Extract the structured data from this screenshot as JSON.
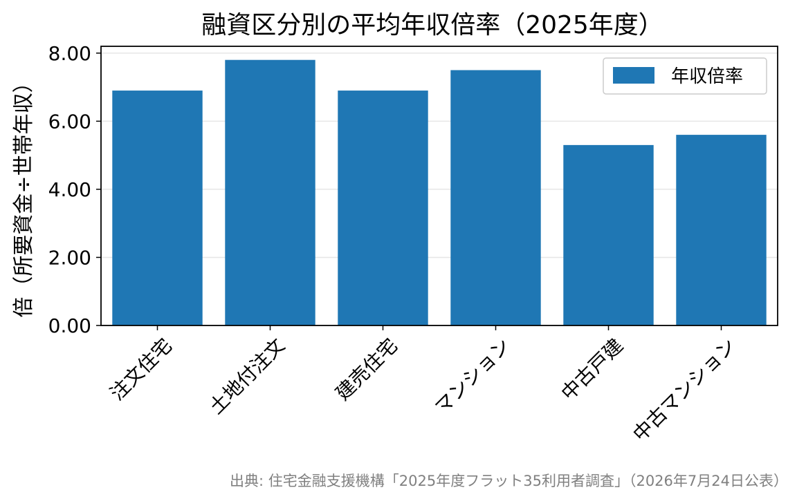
{
  "chart_data": {
    "type": "bar",
    "title": "融資区分別の平均年収倍率（2025年度）",
    "xlabel": "",
    "ylabel": "倍（所要資金÷世帯年収）",
    "categories": [
      "注文住宅",
      "土地付注文",
      "建売住宅",
      "マンション",
      "中古戸建",
      "中古マンション"
    ],
    "series": [
      {
        "name": "年収倍率",
        "values": [
          6.9,
          7.8,
          6.9,
          7.5,
          5.3,
          5.6
        ]
      }
    ],
    "ylim": [
      0,
      8.2
    ],
    "yticks": [
      "0.00",
      "2.00",
      "4.00",
      "6.00",
      "8.00"
    ],
    "grid": "horizontal",
    "legend": "top-right",
    "colors": {
      "bar": "#1f77b4",
      "grid": "#e6e6e6",
      "axis": "#000000",
      "source_text": "#808080"
    }
  },
  "source": "出典: 住宅金融支援機構「2025年度フラット35利用者調査」（2026年7月24日公表）"
}
